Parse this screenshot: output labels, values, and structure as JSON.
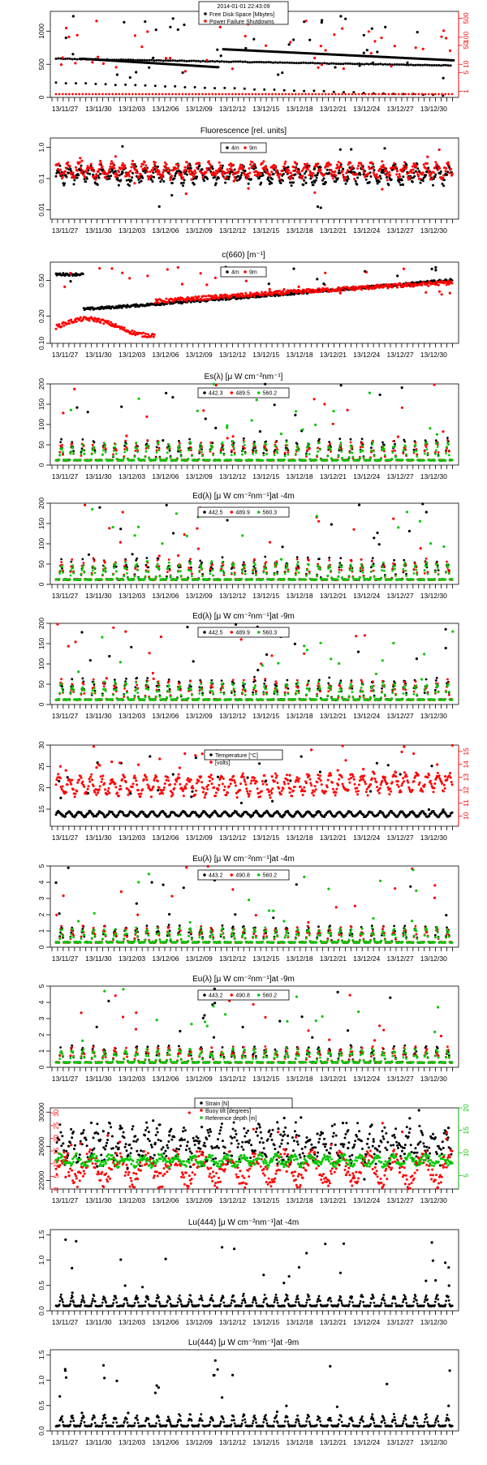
{
  "timestamp": "2014-01-01 22:43:09",
  "x_ticks": [
    "13/11/27",
    "13/11/30",
    "13/12/03",
    "13/12/06",
    "13/12/09",
    "13/12/12",
    "13/12/15",
    "13/12/18",
    "13/12/21",
    "13/12/24",
    "13/12/27",
    "13/12/30"
  ],
  "colors": {
    "black": "#000000",
    "red": "#ff0000",
    "green": "#00c800",
    "axis": "#000000"
  },
  "chart_data": [
    {
      "type": "scatter",
      "title": "",
      "ylim": [
        0,
        1300
      ],
      "yticks": [
        0,
        500,
        1000
      ],
      "ylim_right": [
        0.6,
        900
      ],
      "right_log": true,
      "yticks_right": [
        "1",
        "5",
        "10",
        "50",
        "100",
        "500"
      ],
      "legend_title": "2014-01-01 22:43:09",
      "legend": [
        "Free Disk Space [Mbytes]",
        "Power Failure Shutdowns"
      ],
      "series_colors": [
        "black",
        "red"
      ]
    },
    {
      "type": "scatter",
      "title": "Fluorescence [rel. units]",
      "log": true,
      "ylim": [
        0.005,
        2
      ],
      "yticks": [
        "0.01",
        "0.1",
        "1.0"
      ],
      "legend": [
        "4m",
        "9m"
      ],
      "series_colors": [
        "black",
        "red"
      ]
    },
    {
      "type": "scatter",
      "title": "c(660) [m⁻¹]",
      "log": true,
      "ylim": [
        0.1,
        0.8
      ],
      "yticks": [
        "0.10",
        "0.20",
        "0.50"
      ],
      "legend": [
        "4m",
        "9m"
      ],
      "series_colors": [
        "black",
        "red"
      ]
    },
    {
      "type": "scatter",
      "title": "Es(λ) [μ W cm⁻²nm⁻¹]",
      "ylim": [
        0,
        200
      ],
      "yticks": [
        0,
        50,
        100,
        150,
        200
      ],
      "legend": [
        "442.3",
        "489.5",
        "560.2"
      ],
      "series_colors": [
        "black",
        "red",
        "green"
      ]
    },
    {
      "type": "scatter",
      "title": "Ed(λ) [μ W cm⁻²nm⁻¹]at -4m",
      "ylim": [
        0,
        200
      ],
      "yticks": [
        0,
        50,
        100,
        150,
        200
      ],
      "legend": [
        "442.5",
        "489.9",
        "560.3"
      ],
      "series_colors": [
        "black",
        "red",
        "green"
      ]
    },
    {
      "type": "scatter",
      "title": "Ed(λ) [μ W cm⁻²nm⁻¹]at -9m",
      "ylim": [
        0,
        200
      ],
      "yticks": [
        0,
        50,
        100,
        150,
        200
      ],
      "legend": [
        "442.5",
        "489.9",
        "560.3"
      ],
      "series_colors": [
        "black",
        "red",
        "green"
      ]
    },
    {
      "type": "scatter",
      "title": "",
      "ylim": [
        11,
        30
      ],
      "yticks": [
        15,
        20,
        25,
        30
      ],
      "ylim_right": [
        9.2,
        15.5
      ],
      "yticks_right": [
        "10",
        "11",
        "12",
        "13",
        "14",
        "15"
      ],
      "legend": [
        "Temperature [°C]",
        "[volts]"
      ],
      "series_colors": [
        "black",
        "red"
      ]
    },
    {
      "type": "scatter",
      "title": "Eu(λ) [μ W cm⁻²nm⁻¹]at -4m",
      "ylim": [
        0,
        5
      ],
      "yticks": [
        0,
        1,
        2,
        3,
        4,
        5
      ],
      "legend": [
        "443.2",
        "490.8",
        "560.2"
      ],
      "series_colors": [
        "black",
        "red",
        "green"
      ]
    },
    {
      "type": "scatter",
      "title": "Eu(λ) [μ W cm⁻²nm⁻¹]at -9m",
      "ylim": [
        0,
        5
      ],
      "yticks": [
        0,
        1,
        2,
        3,
        4,
        5
      ],
      "legend": [
        "443.2",
        "490.8",
        "560.2"
      ],
      "series_colors": [
        "black",
        "red",
        "green"
      ]
    },
    {
      "type": "scatter",
      "title": "",
      "ylim": [
        21000,
        30500
      ],
      "yticks": [
        22000,
        26000,
        30000
      ],
      "ylim_right": [
        2,
        20
      ],
      "yticks_right": [
        "5",
        "10",
        "15",
        "20"
      ],
      "yticks_left2": [
        "0",
        "5",
        "10",
        "15",
        "20",
        "25",
        "30"
      ],
      "legend": [
        "Strain [N]",
        "Buoy tilt [degrees]",
        "Reference depth [m]"
      ],
      "series_colors": [
        "black",
        "red",
        "green"
      ]
    },
    {
      "type": "scatter",
      "title": "Lu(444) [μ W cm⁻²nm⁻¹]at -4m",
      "ylim": [
        0,
        1.6
      ],
      "yticks": [
        "0.0",
        "0.5",
        "1.0",
        "1.5"
      ],
      "legend": [],
      "series_colors": [
        "black"
      ]
    },
    {
      "type": "scatter",
      "title": "Lu(444) [μ W cm⁻²nm⁻¹]at -9m",
      "ylim": [
        0,
        1.6
      ],
      "yticks": [
        "0.0",
        "0.5",
        "1.0",
        "1.5"
      ],
      "legend": [],
      "series_colors": [
        "black"
      ]
    }
  ]
}
